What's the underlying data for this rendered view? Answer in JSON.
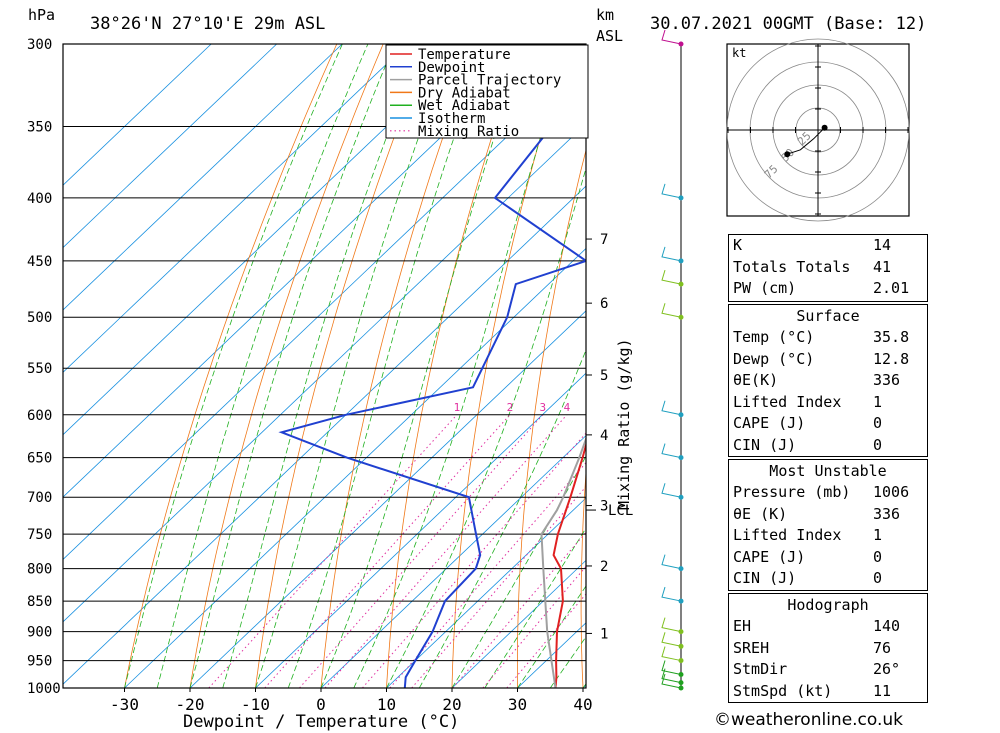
{
  "header": {
    "pressure_unit": "hPa",
    "location": "38°26'N  27°10'E  29m  ASL",
    "height_unit_1": "km",
    "height_unit_2": "ASL",
    "datetime": "30.07.2021  00GMT  (Base: 12)"
  },
  "chart_data": {
    "type": "line",
    "xlabel": "Dewpoint / Temperature (°C)",
    "ylabel": "hPa",
    "xlim": [
      -40,
      40
    ],
    "ylim": [
      1000,
      300
    ],
    "y_scale": "log",
    "skew": true,
    "x_ticks": [
      -30,
      -20,
      -10,
      0,
      10,
      20,
      30,
      40
    ],
    "y_ticks": [
      300,
      350,
      400,
      450,
      500,
      550,
      600,
      650,
      700,
      750,
      800,
      850,
      900,
      950,
      1000
    ],
    "km_ticks": [
      {
        "km": "1",
        "p": 903
      },
      {
        "km": "2",
        "p": 796
      },
      {
        "km": "3",
        "p": 711
      },
      {
        "km": "4",
        "p": 623
      },
      {
        "km": "5",
        "p": 557
      },
      {
        "km": "6",
        "p": 487
      },
      {
        "km": "7",
        "p": 432
      }
    ],
    "lcl": {
      "label": "LCL",
      "p": 717
    },
    "mixing_ratio_label": "Mixing Ratio (g/kg)",
    "mixing_ratio_values": [
      "1",
      "2",
      "3",
      "4",
      "6",
      "8",
      "10",
      "15",
      "20",
      "25"
    ],
    "legend": {
      "placement": "top-right",
      "entries": [
        {
          "name": "Temperature",
          "color": "#e02020",
          "style": "solid"
        },
        {
          "name": "Dewpoint",
          "color": "#2040d0",
          "style": "solid"
        },
        {
          "name": "Parcel Trajectory",
          "color": "#a0a0a0",
          "style": "solid"
        },
        {
          "name": "Dry Adiabat",
          "color": "#f07818",
          "style": "solid"
        },
        {
          "name": "Wet Adiabat",
          "color": "#20b020",
          "style": "solid"
        },
        {
          "name": "Isotherm",
          "color": "#1890e0",
          "style": "solid"
        },
        {
          "name": "Mixing Ratio",
          "color": "#e030a0",
          "style": "dotted"
        }
      ]
    },
    "series": [
      {
        "name": "Temperature",
        "color": "#e02020",
        "points": [
          [
            1000,
            35.8
          ],
          [
            980,
            34.2
          ],
          [
            950,
            31.5
          ],
          [
            900,
            27.0
          ],
          [
            850,
            23.0
          ],
          [
            800,
            17.5
          ],
          [
            780,
            14.2
          ],
          [
            750,
            11.5
          ],
          [
            700,
            7.5
          ],
          [
            650,
            3.0
          ],
          [
            620,
            0.0
          ],
          [
            600,
            -2.0
          ],
          [
            550,
            -7.5
          ],
          [
            500,
            -13.5
          ],
          [
            450,
            -20.0
          ],
          [
            400,
            -28.5
          ],
          [
            385,
            -29.5
          ],
          [
            360,
            -34.0
          ]
        ]
      },
      {
        "name": "Dewpoint",
        "color": "#2040d0",
        "points": [
          [
            1000,
            12.8
          ],
          [
            980,
            11.2
          ],
          [
            950,
            10.0
          ],
          [
            900,
            8.0
          ],
          [
            850,
            5.0
          ],
          [
            800,
            4.5
          ],
          [
            780,
            3.0
          ],
          [
            750,
            -1.0
          ],
          [
            700,
            -8.0
          ],
          [
            650,
            -33.0
          ],
          [
            620,
            -47.0
          ],
          [
            600,
            -40.0
          ],
          [
            570,
            -25.0
          ],
          [
            500,
            -31.0
          ],
          [
            470,
            -35.0
          ],
          [
            450,
            -28.0
          ],
          [
            400,
            -52.0
          ],
          [
            300,
            -58.0
          ]
        ]
      },
      {
        "name": "Parcel Trajectory",
        "color": "#a0a0a0",
        "points": [
          [
            1000,
            35.8
          ],
          [
            900,
            25.5
          ],
          [
            800,
            14.8
          ],
          [
            750,
            9.0
          ],
          [
            717,
            7.5
          ],
          [
            700,
            6.4
          ],
          [
            650,
            2.5
          ],
          [
            600,
            -2.0
          ],
          [
            550,
            -7.3
          ],
          [
            500,
            -13.2
          ],
          [
            450,
            -19.8
          ],
          [
            400,
            -27.4
          ],
          [
            350,
            -36.5
          ],
          [
            300,
            -47.5
          ]
        ]
      }
    ],
    "wind_barbs": [
      {
        "p": 1000,
        "color": "#20a020"
      },
      {
        "p": 990,
        "color": "#20a020"
      },
      {
        "p": 975,
        "color": "#20a020"
      },
      {
        "p": 950,
        "color": "#80c020"
      },
      {
        "p": 925,
        "color": "#80c020"
      },
      {
        "p": 900,
        "color": "#80c020"
      },
      {
        "p": 850,
        "color": "#20a0c0"
      },
      {
        "p": 800,
        "color": "#20a0c0"
      },
      {
        "p": 700,
        "color": "#20a0c0"
      },
      {
        "p": 650,
        "color": "#20a0c0"
      },
      {
        "p": 600,
        "color": "#20a0c0"
      },
      {
        "p": 500,
        "color": "#80c020"
      },
      {
        "p": 470,
        "color": "#80c020"
      },
      {
        "p": 450,
        "color": "#20a0c0"
      },
      {
        "p": 400,
        "color": "#20a0c0"
      },
      {
        "p": 300,
        "color": "#c01090"
      }
    ],
    "hodograph": {
      "unit": "kt",
      "rings": [
        "25",
        "50",
        "75"
      ],
      "points": [
        [
          3,
          1
        ],
        [
          -2,
          -4
        ],
        [
          -8,
          -9
        ],
        [
          -14,
          -11
        ]
      ]
    }
  },
  "indices": {
    "rows": [
      {
        "label": "K",
        "value": "14"
      },
      {
        "label": "Totals Totals",
        "value": "41"
      },
      {
        "label": "PW (cm)",
        "value": "2.01"
      }
    ]
  },
  "surface": {
    "title": "Surface",
    "rows": [
      {
        "label": "Temp (°C)",
        "value": "35.8"
      },
      {
        "label": "Dewp (°C)",
        "value": "12.8"
      },
      {
        "label": "θE(K)",
        "value": "336"
      },
      {
        "label": "Lifted Index",
        "value": "1"
      },
      {
        "label": "CAPE (J)",
        "value": "0"
      },
      {
        "label": "CIN (J)",
        "value": "0"
      }
    ]
  },
  "most_unstable": {
    "title": "Most Unstable",
    "rows": [
      {
        "label": "Pressure (mb)",
        "value": "1006"
      },
      {
        "label": "θE (K)",
        "value": "336"
      },
      {
        "label": "Lifted Index",
        "value": "1"
      },
      {
        "label": "CAPE (J)",
        "value": "0"
      },
      {
        "label": "CIN (J)",
        "value": "0"
      }
    ]
  },
  "hodograph_table": {
    "title": "Hodograph",
    "rows": [
      {
        "label": "EH",
        "value": "140"
      },
      {
        "label": "SREH",
        "value": "76"
      },
      {
        "label": "StmDir",
        "value": "26°"
      },
      {
        "label": "StmSpd (kt)",
        "value": "11"
      }
    ]
  },
  "footer": {
    "copyright": "©weatheronline.co.uk"
  }
}
